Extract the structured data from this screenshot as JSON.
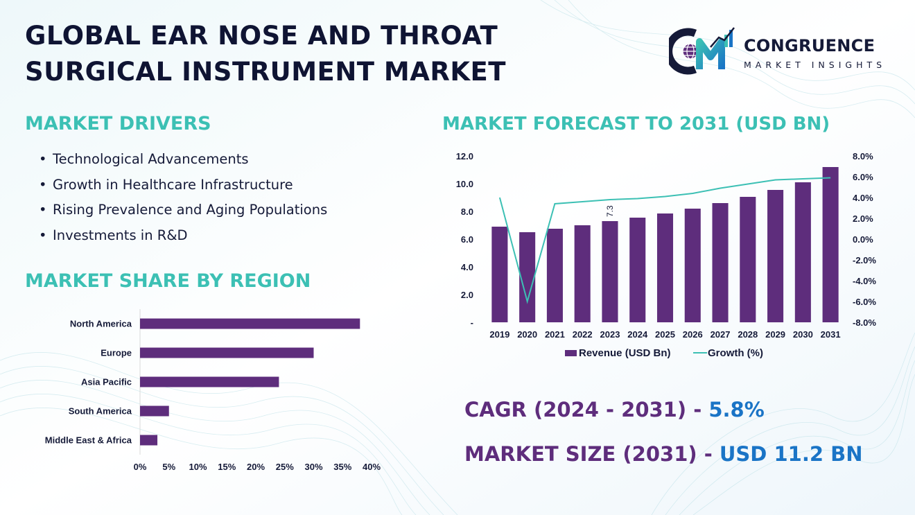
{
  "header": {
    "title": "GLOBAL EAR NOSE AND THROAT\nSURGICAL INSTRUMENT MARKET"
  },
  "logo": {
    "mark": "CM",
    "name": "CONGRUENCE",
    "tagline": "MARKET INSIGHTS",
    "icon": "globe-bar-chart-logo-icon"
  },
  "drivers": {
    "title": "MARKET DRIVERS",
    "bullet": "•",
    "items": [
      "Technological Advancements",
      "Growth in Healthcare Infrastructure",
      "Rising Prevalence and Aging Populations",
      "Investments in R&D"
    ]
  },
  "region": {
    "title": "MARKET SHARE BY REGION"
  },
  "forecast": {
    "title": "MARKET FORECAST TO 2031 (USD BN)"
  },
  "stats": {
    "cagr_label": "CAGR (2024 - 2031)",
    "cagr_sep": " - ",
    "cagr_value": "5.8%",
    "size_label": "MARKET SIZE (2031)",
    "size_sep": " - ",
    "size_value": "USD 11.2 BN"
  },
  "colors": {
    "bar": "#5e2d7c",
    "line": "#3cc0b4",
    "accent_teal": "#3cc0b4",
    "accent_blue": "#1a74c6",
    "accent_purple": "#5e2d7c"
  },
  "chart_data": [
    {
      "type": "bar",
      "orientation": "horizontal",
      "categories": [
        "North America",
        "Europe",
        "Asia Pacific",
        "South America",
        "Middle East & Africa"
      ],
      "values": [
        38,
        30,
        24,
        5,
        3
      ],
      "xlim": [
        0,
        40
      ],
      "x_ticks": [
        "0%",
        "5%",
        "10%",
        "15%",
        "20%",
        "25%",
        "30%",
        "35%",
        "40%"
      ],
      "grid": false
    },
    {
      "type": "bar",
      "categories": [
        "2019",
        "2020",
        "2021",
        "2022",
        "2023",
        "2024",
        "2025",
        "2026",
        "2027",
        "2028",
        "2029",
        "2030",
        "2031"
      ],
      "series": [
        {
          "name": "Revenue (USD Bn)",
          "type": "bar",
          "axis": "left",
          "values": [
            6.9,
            6.5,
            6.75,
            7.0,
            7.3,
            7.55,
            7.85,
            8.2,
            8.6,
            9.05,
            9.55,
            10.1,
            11.2
          ]
        },
        {
          "name": "Growth (%)",
          "type": "line",
          "axis": "right",
          "values": [
            4.0,
            -6.0,
            3.4,
            3.6,
            3.8,
            3.9,
            4.1,
            4.4,
            4.9,
            5.3,
            5.7,
            5.8,
            5.9
          ]
        }
      ],
      "data_labels": [
        {
          "category": "2023",
          "text": "7.3"
        }
      ],
      "ylim_left": [
        0,
        12
      ],
      "left_ticks": [
        "-",
        "2.0",
        "4.0",
        "6.0",
        "8.0",
        "10.0",
        "12.0"
      ],
      "ylim_right": [
        -8,
        8
      ],
      "right_ticks": [
        "-8.0%",
        "-6.0%",
        "-4.0%",
        "-2.0%",
        "0.0%",
        "2.0%",
        "4.0%",
        "6.0%",
        "8.0%"
      ],
      "legend": "bottom",
      "grid": false
    }
  ]
}
